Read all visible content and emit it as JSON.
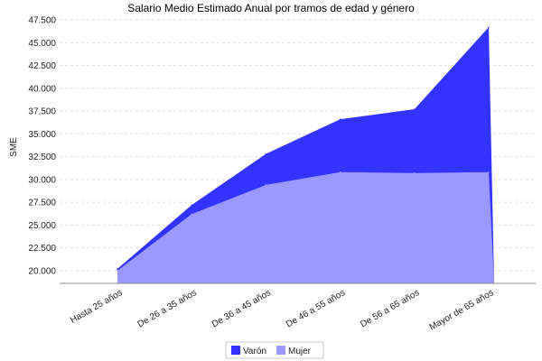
{
  "chart_data": {
    "type": "area",
    "title": "Salario Medio Estimado Anual por tramos de edad y género",
    "xlabel": "",
    "ylabel": "SME",
    "categories": [
      "Hasta 25  años",
      "De 26  a 35  años",
      "De 36  a 45  años",
      "De 46  a 55  años",
      "De 56  a 65  años",
      "Mayor de 65  años"
    ],
    "series": [
      {
        "name": "Varón",
        "values": [
          20200,
          27200,
          32800,
          36600,
          37700,
          46700
        ]
      },
      {
        "name": "Mujer",
        "values": [
          20000,
          26200,
          29400,
          30800,
          30700,
          30800
        ]
      }
    ],
    "ylim": [
      18600,
      47800
    ],
    "yticks": [
      "20.000",
      "22.500",
      "25.000",
      "27.500",
      "30.000",
      "32.500",
      "35.000",
      "37.500",
      "40.000",
      "42.500",
      "45.000",
      "47.500"
    ],
    "ytick_values": [
      20000,
      22500,
      25000,
      27500,
      30000,
      32500,
      35000,
      37500,
      40000,
      42500,
      45000,
      47500
    ],
    "grid": true,
    "legend": "bottom-center",
    "colors": {
      "Varón": "#3333ff",
      "Mujer": "#9999ff",
      "grid": "#dcdcdc",
      "axis": "#888888"
    }
  }
}
